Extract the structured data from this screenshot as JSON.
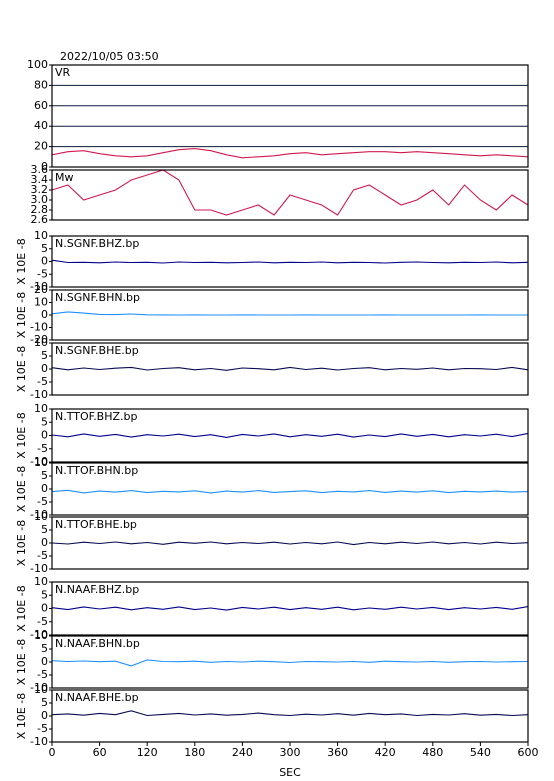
{
  "chart_data": [
    {
      "type": "line",
      "title": "2022/10/05 03:50",
      "label": "VR",
      "color": "#d01850",
      "grid": true,
      "xlim": [
        0,
        600
      ],
      "ylim": [
        0,
        100
      ],
      "yticks": [
        0,
        20,
        40,
        60,
        80,
        100
      ],
      "x": [
        0,
        20,
        40,
        60,
        80,
        100,
        120,
        140,
        160,
        180,
        200,
        220,
        240,
        260,
        280,
        300,
        320,
        340,
        360,
        380,
        400,
        420,
        440,
        460,
        480,
        500,
        520,
        540,
        560,
        580,
        600
      ],
      "values": [
        12,
        15,
        16,
        13,
        11,
        10,
        11,
        14,
        17,
        18,
        16,
        12,
        9,
        10,
        11,
        13,
        14,
        12,
        13,
        14,
        15,
        15,
        14,
        15,
        14,
        13,
        12,
        11,
        12,
        11,
        10
      ]
    },
    {
      "type": "line",
      "label": "Mw",
      "color": "#d01850",
      "xlim": [
        0,
        600
      ],
      "ylim": [
        2.6,
        3.6
      ],
      "yticks": [
        2.6,
        2.8,
        {
          "value": 3,
          "label": "3.0"
        },
        3.2,
        3.4,
        3.6
      ],
      "x": [
        0,
        20,
        40,
        60,
        80,
        100,
        120,
        140,
        160,
        180,
        200,
        220,
        240,
        260,
        280,
        300,
        320,
        340,
        360,
        380,
        400,
        420,
        440,
        460,
        480,
        500,
        520,
        540,
        560,
        580,
        600
      ],
      "values": [
        3.2,
        3.3,
        3.0,
        3.1,
        3.2,
        3.4,
        3.5,
        3.6,
        3.4,
        2.8,
        2.8,
        2.7,
        2.8,
        2.9,
        2.7,
        3.1,
        3.0,
        2.9,
        2.7,
        3.2,
        3.3,
        3.1,
        2.9,
        3.0,
        3.2,
        2.9,
        3.3,
        3.0,
        2.8,
        3.1,
        2.9
      ]
    },
    {
      "type": "line",
      "label": "N.SGNF.BHZ.bp",
      "ylabel": "X 10E -8",
      "color": "#00008b",
      "xlim": [
        0,
        600
      ],
      "ylim": [
        -10,
        10
      ],
      "yticks": [
        -10,
        -5,
        0,
        5,
        10
      ],
      "x": [
        0,
        20,
        40,
        60,
        80,
        100,
        120,
        140,
        160,
        180,
        200,
        220,
        240,
        260,
        280,
        300,
        320,
        340,
        360,
        380,
        400,
        420,
        440,
        460,
        480,
        500,
        520,
        540,
        560,
        580,
        600
      ],
      "values": [
        0.5,
        -0.4,
        -0.3,
        -0.5,
        -0.2,
        -0.4,
        -0.3,
        -0.6,
        -0.2,
        -0.4,
        -0.3,
        -0.5,
        -0.4,
        -0.2,
        -0.5,
        -0.3,
        -0.4,
        -0.2,
        -0.5,
        -0.3,
        -0.4,
        -0.6,
        -0.3,
        -0.2,
        -0.4,
        -0.5,
        -0.3,
        -0.4,
        -0.2,
        -0.5,
        -0.3
      ]
    },
    {
      "type": "line",
      "label": "N.SGNF.BHN.bp",
      "ylabel": "X 10E -8",
      "color": "#1e90ff",
      "xlim": [
        0,
        600
      ],
      "ylim": [
        -20,
        20
      ],
      "yticks": [
        -20,
        -10,
        0,
        10,
        20
      ],
      "x": [
        0,
        20,
        40,
        60,
        80,
        100,
        120,
        140,
        160,
        180,
        200,
        220,
        240,
        260,
        280,
        300,
        320,
        340,
        360,
        380,
        400,
        420,
        440,
        460,
        480,
        500,
        520,
        540,
        560,
        580,
        600
      ],
      "values": [
        1,
        2.5,
        1.5,
        0.5,
        0.3,
        0.8,
        0.2,
        0.1,
        0,
        0.1,
        0,
        0,
        0.1,
        0,
        0,
        0,
        0.1,
        0,
        0,
        0,
        0,
        0.1,
        0,
        0,
        0,
        0,
        0,
        0.1,
        0,
        0,
        0
      ]
    },
    {
      "type": "line",
      "label": "N.SGNF.BHE.bp",
      "ylabel": "X 10E -8",
      "color": "#0a0a50",
      "xlim": [
        0,
        600
      ],
      "ylim": [
        -10,
        10
      ],
      "yticks": [
        -10,
        -5,
        0,
        5,
        10
      ],
      "x": [
        0,
        20,
        40,
        60,
        80,
        100,
        120,
        140,
        160,
        180,
        200,
        220,
        240,
        260,
        280,
        300,
        320,
        340,
        360,
        380,
        400,
        420,
        440,
        460,
        480,
        500,
        520,
        540,
        560,
        580,
        600
      ],
      "values": [
        0.5,
        -0.3,
        0.4,
        -0.2,
        0.3,
        0.6,
        -0.4,
        0.2,
        0.5,
        -0.3,
        0.2,
        -0.5,
        0.4,
        0.1,
        -0.3,
        0.6,
        -0.2,
        0.3,
        -0.4,
        0.2,
        0.5,
        -0.3,
        0.2,
        -0.1,
        0.4,
        -0.3,
        0.2,
        0.1,
        -0.2,
        0.6,
        -0.3
      ]
    },
    {
      "type": "line",
      "label": "N.TTOF.BHZ.bp",
      "ylabel": "X 10E -8",
      "color": "#00008b",
      "xlim": [
        0,
        600
      ],
      "ylim": [
        -10,
        10
      ],
      "yticks": [
        -10,
        -5,
        0,
        5,
        10
      ],
      "x": [
        0,
        20,
        40,
        60,
        80,
        100,
        120,
        140,
        160,
        180,
        200,
        220,
        240,
        260,
        280,
        300,
        320,
        340,
        360,
        380,
        400,
        420,
        440,
        460,
        480,
        500,
        520,
        540,
        560,
        580,
        600
      ],
      "values": [
        0.2,
        -0.5,
        0.6,
        -0.3,
        0.4,
        -0.6,
        0.3,
        -0.2,
        0.5,
        -0.4,
        0.3,
        -0.7,
        0.4,
        -0.2,
        0.6,
        -0.5,
        0.3,
        -0.3,
        0.5,
        -0.6,
        0.2,
        -0.4,
        0.6,
        -0.3,
        0.4,
        -0.5,
        0.3,
        -0.2,
        0.5,
        -0.4,
        0.8
      ]
    },
    {
      "type": "line",
      "label": "N.TTOF.BHN.bp",
      "ylabel": "X 10E -8",
      "color": "#1e90ff",
      "xlim": [
        0,
        600
      ],
      "ylim": [
        -10,
        10
      ],
      "yticks": [
        -10,
        -5,
        0,
        5,
        10
      ],
      "x": [
        0,
        20,
        40,
        60,
        80,
        100,
        120,
        140,
        160,
        180,
        200,
        220,
        240,
        260,
        280,
        300,
        320,
        340,
        360,
        380,
        400,
        420,
        440,
        460,
        480,
        500,
        520,
        540,
        560,
        580,
        600
      ],
      "values": [
        -1,
        -0.5,
        -1.5,
        -0.8,
        -1.2,
        -0.6,
        -1.4,
        -0.9,
        -1.1,
        -0.7,
        -1.5,
        -0.8,
        -1.2,
        -0.6,
        -1.3,
        -1,
        -0.7,
        -1.4,
        -0.9,
        -1.1,
        -0.6,
        -1.3,
        -0.8,
        -1.2,
        -0.7,
        -1.4,
        -0.9,
        -1.1,
        -0.8,
        -1.2,
        -1
      ]
    },
    {
      "type": "line",
      "label": "N.TTOF.BHE.bp",
      "ylabel": "X 10E -8",
      "color": "#0a0a50",
      "xlim": [
        0,
        600
      ],
      "ylim": [
        -10,
        10
      ],
      "yticks": [
        -10,
        -5,
        0,
        5,
        10
      ],
      "x": [
        0,
        20,
        40,
        60,
        80,
        100,
        120,
        140,
        160,
        180,
        200,
        220,
        240,
        260,
        280,
        300,
        320,
        340,
        360,
        380,
        400,
        420,
        440,
        460,
        480,
        500,
        520,
        540,
        560,
        580,
        600
      ],
      "values": [
        0,
        -0.4,
        0.3,
        -0.2,
        0.4,
        -0.3,
        0.2,
        -0.5,
        0.3,
        -0.1,
        0.4,
        -0.3,
        0.2,
        -0.2,
        0.3,
        -0.4,
        0.2,
        -0.3,
        0.4,
        -0.6,
        0.2,
        -0.3,
        0.3,
        -0.2,
        0.4,
        -0.3,
        0.2,
        -0.4,
        0.3,
        -0.2,
        0.1
      ]
    },
    {
      "type": "line",
      "label": "N.NAAF.BHZ.bp",
      "ylabel": "X 10E -8",
      "color": "#00008b",
      "xlim": [
        0,
        600
      ],
      "ylim": [
        -10,
        10
      ],
      "yticks": [
        -10,
        -5,
        0,
        5,
        10
      ],
      "x": [
        0,
        20,
        40,
        60,
        80,
        100,
        120,
        140,
        160,
        180,
        200,
        220,
        240,
        260,
        280,
        300,
        320,
        340,
        360,
        380,
        400,
        420,
        440,
        460,
        480,
        500,
        520,
        540,
        560,
        580,
        600
      ],
      "values": [
        0.3,
        -0.4,
        0.6,
        -0.2,
        0.5,
        -0.5,
        0.3,
        -0.3,
        0.6,
        -0.4,
        0.2,
        -0.6,
        0.4,
        -0.2,
        0.5,
        -0.4,
        0.3,
        -0.3,
        0.5,
        -0.5,
        0.2,
        -0.3,
        0.5,
        -0.2,
        0.4,
        -0.4,
        0.3,
        -0.2,
        0.4,
        -0.3,
        0.7
      ]
    },
    {
      "type": "line",
      "label": "N.NAAF.BHN.bp",
      "ylabel": "X 10E -8",
      "color": "#1e90ff",
      "xlim": [
        0,
        600
      ],
      "ylim": [
        -10,
        10
      ],
      "yticks": [
        -10,
        -5,
        0,
        5,
        10
      ],
      "x": [
        0,
        20,
        40,
        60,
        80,
        100,
        120,
        140,
        160,
        180,
        200,
        220,
        240,
        260,
        280,
        300,
        320,
        340,
        360,
        380,
        400,
        420,
        440,
        460,
        480,
        500,
        520,
        540,
        560,
        580,
        600
      ],
      "values": [
        0.5,
        0.2,
        0.4,
        0.1,
        0.3,
        -1.5,
        0.8,
        0.2,
        0.1,
        0.3,
        -0.1,
        0.2,
        0,
        0.3,
        0.1,
        -0.2,
        0.2,
        0.1,
        0,
        0.2,
        -0.1,
        0.3,
        0.1,
        0,
        0.2,
        -0.1,
        0.1,
        0.2,
        0,
        0.1,
        0.2
      ]
    },
    {
      "type": "line",
      "label": "N.NAAF.BHE.bp",
      "ylabel": "X 10E -8",
      "color": "#0a0a50",
      "xlabel": "SEC",
      "xlim": [
        0,
        600
      ],
      "ylim": [
        -10,
        10
      ],
      "yticks": [
        -10,
        -5,
        0,
        5,
        10
      ],
      "xticks": [
        0,
        60,
        120,
        180,
        240,
        300,
        360,
        420,
        480,
        540,
        600
      ],
      "x": [
        0,
        20,
        40,
        60,
        80,
        100,
        120,
        140,
        160,
        180,
        200,
        220,
        240,
        260,
        280,
        300,
        320,
        340,
        360,
        380,
        400,
        420,
        440,
        460,
        480,
        500,
        520,
        540,
        560,
        580,
        600
      ],
      "values": [
        0.5,
        0.8,
        0.3,
        1,
        0.5,
        2,
        0.2,
        0.6,
        1,
        0.4,
        0.8,
        0.3,
        0.6,
        1.1,
        0.5,
        0.2,
        0.7,
        0.4,
        0.9,
        0.3,
        1,
        0.5,
        0.8,
        0.2,
        0.6,
        0.4,
        0.9,
        0.3,
        0.6,
        0.2,
        0.5
      ]
    }
  ]
}
